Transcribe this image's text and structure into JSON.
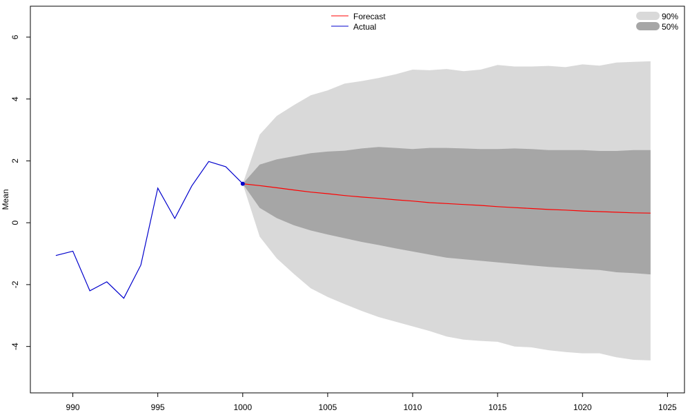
{
  "chart_data": {
    "type": "line",
    "title": "",
    "xlabel": "",
    "ylabel": "Mean",
    "xlim": [
      987.5,
      1026
    ],
    "ylim": [
      -5.5,
      7
    ],
    "x_ticks": [
      990,
      995,
      1000,
      1005,
      1010,
      1015,
      1020,
      1025
    ],
    "y_ticks": [
      -4,
      -2,
      0,
      2,
      4,
      6
    ],
    "grid": false,
    "legend_position": "top-center",
    "band_legend_position": "top-right",
    "colors": {
      "forecast": "#ff0000",
      "actual": "#0000cc",
      "band90": "#d9d9d9",
      "band50": "#a6a6a6"
    },
    "legend": {
      "forecast": "Forecast",
      "actual": "Actual",
      "band90": "90%",
      "band50": "50%"
    },
    "series": [
      {
        "name": "Actual",
        "x": [
          989,
          990,
          991,
          992,
          993,
          994,
          995,
          996,
          997,
          998,
          999,
          1000
        ],
        "values": [
          -1.06,
          -0.92,
          -2.2,
          -1.91,
          -2.44,
          -1.37,
          1.12,
          0.14,
          1.19,
          1.98,
          1.81,
          1.26
        ]
      },
      {
        "name": "Forecast",
        "x": [
          1000,
          1001,
          1002,
          1003,
          1004,
          1005,
          1006,
          1007,
          1008,
          1009,
          1010,
          1011,
          1012,
          1013,
          1014,
          1015,
          1016,
          1017,
          1018,
          1019,
          1020,
          1021,
          1022,
          1023,
          1024
        ],
        "values": [
          1.26,
          1.2,
          1.13,
          1.06,
          0.99,
          0.94,
          0.88,
          0.83,
          0.79,
          0.74,
          0.7,
          0.65,
          0.62,
          0.59,
          0.56,
          0.52,
          0.49,
          0.46,
          0.43,
          0.41,
          0.38,
          0.36,
          0.34,
          0.32,
          0.31
        ]
      }
    ],
    "bands": [
      {
        "name": "90%",
        "x": [
          1000,
          1001,
          1002,
          1003,
          1004,
          1005,
          1006,
          1007,
          1008,
          1009,
          1010,
          1011,
          1012,
          1013,
          1014,
          1015,
          1016,
          1017,
          1018,
          1019,
          1020,
          1021,
          1022,
          1023,
          1024
        ],
        "upper": [
          1.26,
          2.85,
          3.45,
          3.8,
          4.12,
          4.28,
          4.5,
          4.58,
          4.68,
          4.8,
          4.95,
          4.93,
          4.97,
          4.9,
          4.95,
          5.1,
          5.05,
          5.05,
          5.07,
          5.03,
          5.12,
          5.08,
          5.18,
          5.2,
          5.22
        ],
        "lower": [
          1.26,
          -0.45,
          -1.15,
          -1.65,
          -2.12,
          -2.4,
          -2.63,
          -2.85,
          -3.05,
          -3.2,
          -3.35,
          -3.5,
          -3.68,
          -3.78,
          -3.82,
          -3.85,
          -4.0,
          -4.03,
          -4.12,
          -4.18,
          -4.22,
          -4.22,
          -4.35,
          -4.43,
          -4.45
        ]
      },
      {
        "name": "50%",
        "x": [
          1000,
          1001,
          1002,
          1003,
          1004,
          1005,
          1006,
          1007,
          1008,
          1009,
          1010,
          1011,
          1012,
          1013,
          1014,
          1015,
          1016,
          1017,
          1018,
          1019,
          1020,
          1021,
          1022,
          1023,
          1024
        ],
        "upper": [
          1.26,
          1.88,
          2.05,
          2.15,
          2.25,
          2.3,
          2.33,
          2.4,
          2.45,
          2.42,
          2.38,
          2.42,
          2.42,
          2.4,
          2.38,
          2.38,
          2.4,
          2.38,
          2.35,
          2.35,
          2.35,
          2.32,
          2.32,
          2.35,
          2.35
        ],
        "lower": [
          1.26,
          0.48,
          0.15,
          -0.08,
          -0.25,
          -0.38,
          -0.5,
          -0.62,
          -0.72,
          -0.83,
          -0.93,
          -1.03,
          -1.13,
          -1.18,
          -1.23,
          -1.28,
          -1.33,
          -1.38,
          -1.43,
          -1.46,
          -1.5,
          -1.53,
          -1.6,
          -1.63,
          -1.67
        ]
      }
    ]
  }
}
